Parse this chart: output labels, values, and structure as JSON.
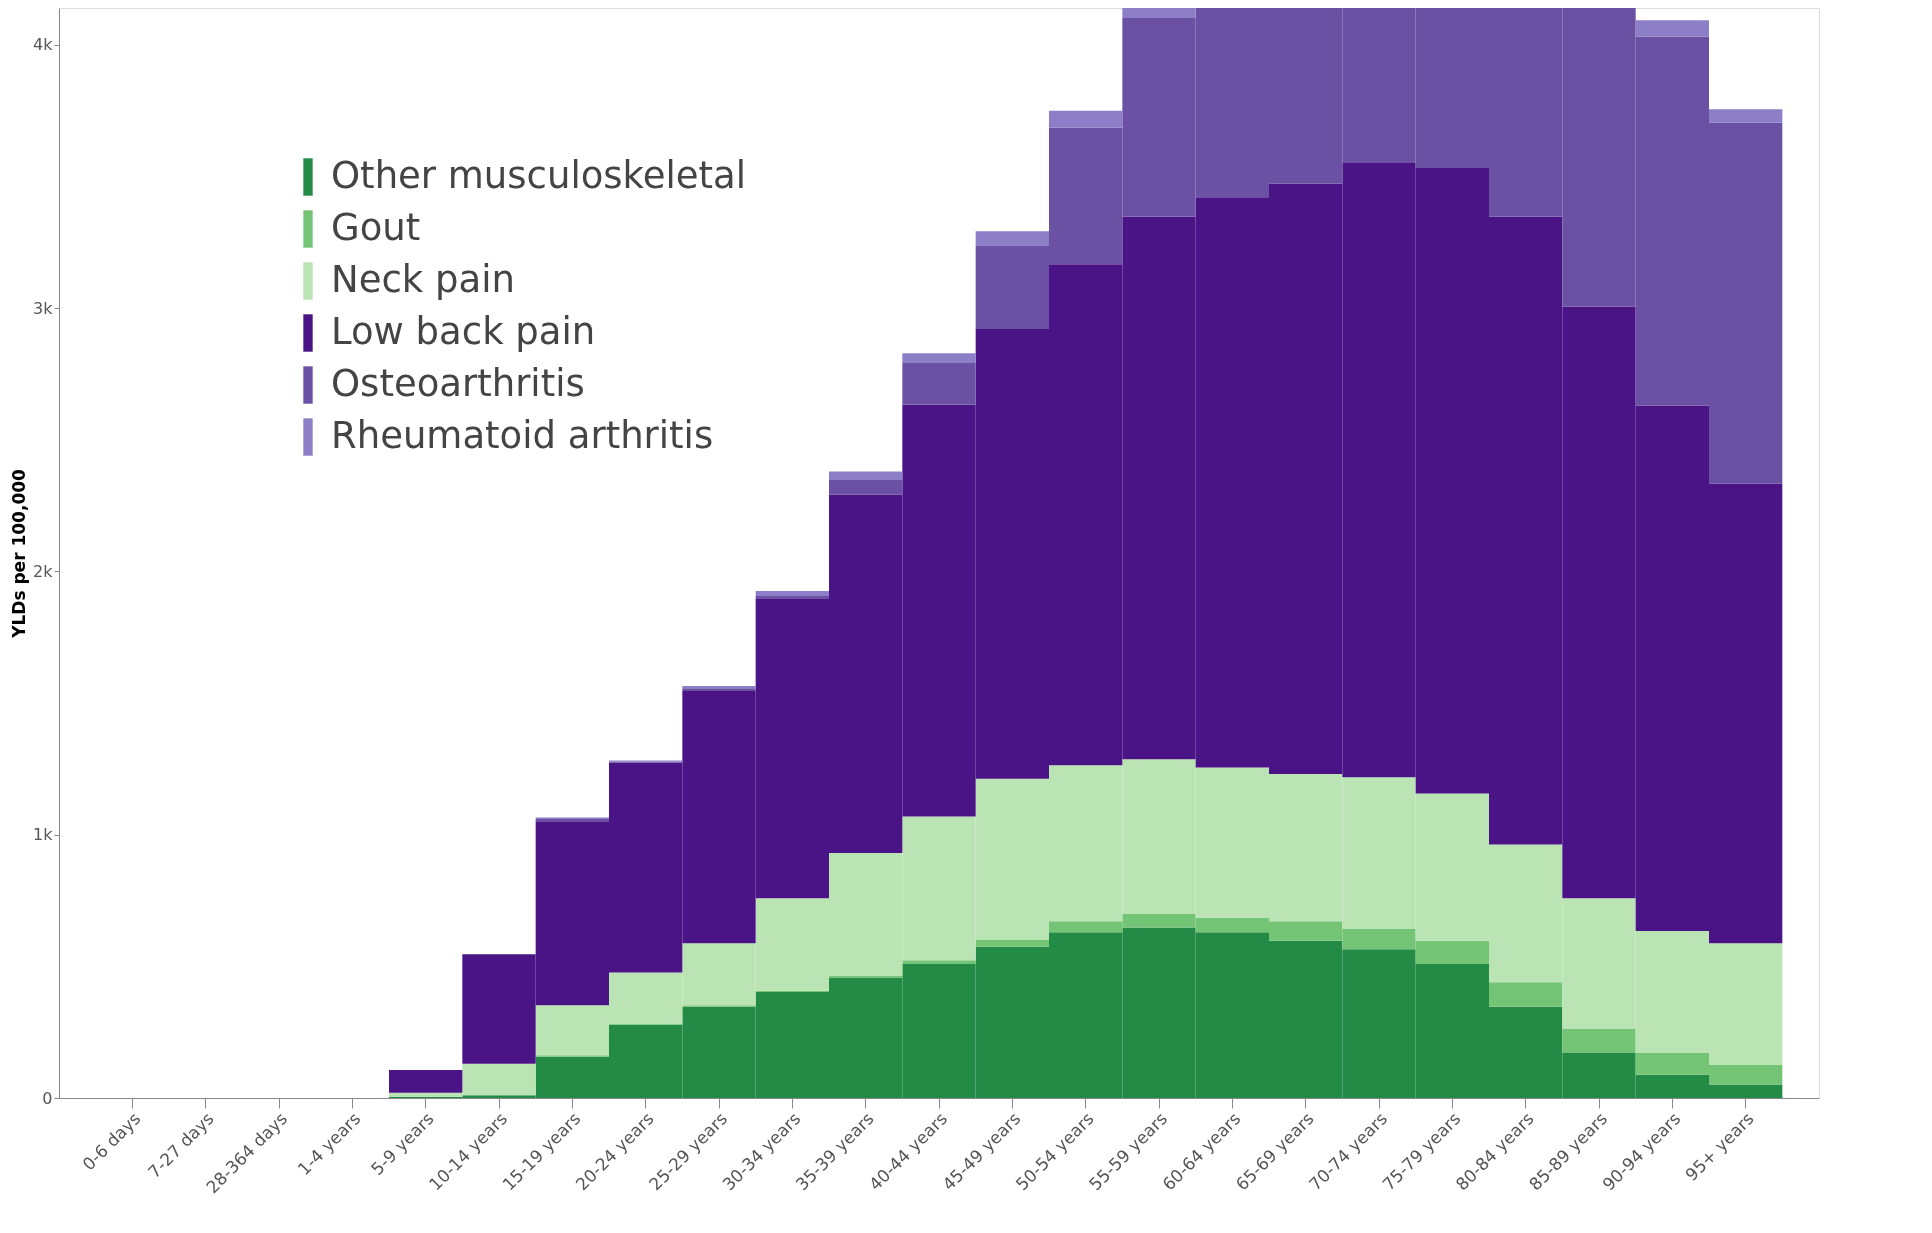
{
  "chart_data": {
    "type": "bar",
    "stacked": true,
    "ylabel": "YLDs per 100,000",
    "categories": [
      "0-6 days",
      "7-27 days",
      "28-364 days",
      "1-4 years",
      "5-9 years",
      "10-14 years",
      "15-19 years",
      "20-24 years",
      "25-29 years",
      "30-34 years",
      "35-39 years",
      "40-44 years",
      "45-49 years",
      "50-54 years",
      "55-59 years",
      "60-64 years",
      "65-69 years",
      "70-74 years",
      "75-79 years",
      "80-84 years",
      "85-89 years",
      "90-94 years",
      "95+ years"
    ],
    "series": [
      {
        "name": "Other musculoskeletal",
        "color": "#238b45",
        "values": [
          0,
          0,
          0,
          0,
          5,
          10,
          157,
          278,
          347,
          403,
          458,
          509,
          574,
          630,
          648,
          630,
          597,
          565,
          509,
          347,
          171,
          88,
          51
        ]
      },
      {
        "name": "Gout",
        "color": "#74c476",
        "values": [
          0,
          0,
          0,
          0,
          0,
          0,
          5,
          4,
          5,
          4,
          5,
          14,
          28,
          41,
          51,
          55,
          74,
          79,
          88,
          93,
          93,
          83,
          74
        ]
      },
      {
        "name": "Neck pain",
        "color": "#bae4b3",
        "values": [
          0,
          0,
          0,
          0,
          15,
          120,
          190,
          195,
          236,
          352,
          468,
          546,
          611,
          593,
          588,
          570,
          560,
          574,
          560,
          523,
          495,
          463,
          463
        ]
      },
      {
        "name": "Low back pain",
        "color": "#4a1486",
        "values": [
          0,
          0,
          0,
          0,
          86,
          416,
          699,
          796,
          958,
          1139,
          1361,
          1565,
          1708,
          1903,
          2060,
          2166,
          2241,
          2333,
          2375,
          2384,
          2246,
          1996,
          1745
        ]
      },
      {
        "name": "Osteoarthritis",
        "color": "#6a51a3",
        "values": [
          0,
          0,
          0,
          0,
          0,
          0,
          9,
          5,
          10,
          9,
          55,
          158,
          315,
          518,
          755,
          719,
          668,
          589,
          608,
          793,
          1135,
          1402,
          1371
        ]
      },
      {
        "name": "Rheumatoid arthritis",
        "color": "#8c7fc8",
        "values": [
          0,
          0,
          0,
          0,
          0,
          0,
          5,
          4,
          9,
          19,
          33,
          37,
          56,
          65,
          38,
          null,
          null,
          null,
          null,
          null,
          null,
          61,
          51
        ]
      }
    ],
    "ylim": [
      0,
      4140
    ],
    "yticks": [
      {
        "value": 0,
        "label": "0"
      },
      {
        "value": 1000,
        "label": "1k"
      },
      {
        "value": 2000,
        "label": "2k"
      },
      {
        "value": 3000,
        "label": "3k"
      },
      {
        "value": 4000,
        "label": "4k"
      }
    ],
    "grid": false,
    "legend": "top left"
  }
}
